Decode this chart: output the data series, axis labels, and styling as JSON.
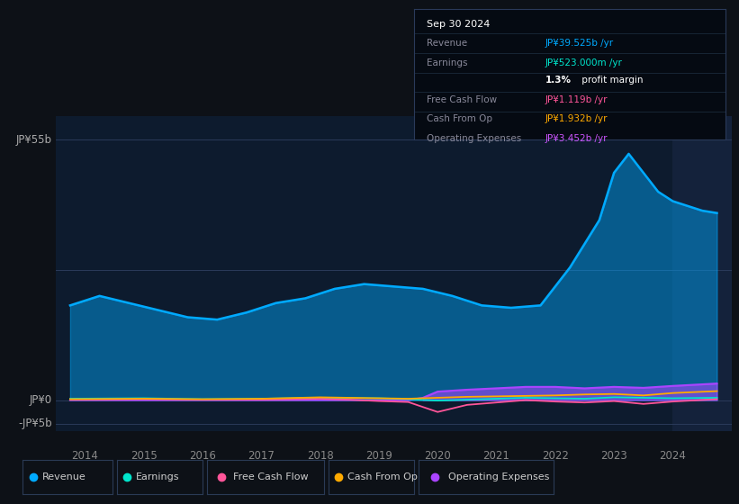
{
  "background_color": "#0d1117",
  "chart_bg_color": "#0d1b2e",
  "ylabel_top": "JP¥55b",
  "ylabel_zero": "JP¥0",
  "ylabel_neg": "-JP¥5b",
  "legend_items": [
    {
      "label": "Revenue",
      "color": "#00aaff"
    },
    {
      "label": "Earnings",
      "color": "#00e5cc"
    },
    {
      "label": "Free Cash Flow",
      "color": "#ff5599"
    },
    {
      "label": "Cash From Op",
      "color": "#ffaa00"
    },
    {
      "label": "Operating Expenses",
      "color": "#aa44ff"
    }
  ],
  "revenue_x": [
    2013.75,
    2014.25,
    2014.75,
    2015.25,
    2015.75,
    2016.25,
    2016.75,
    2017.25,
    2017.75,
    2018.25,
    2018.75,
    2019.25,
    2019.75,
    2020.25,
    2020.75,
    2021.25,
    2021.75,
    2022.25,
    2022.75,
    2023.0,
    2023.25,
    2023.5,
    2023.75,
    2024.0,
    2024.5,
    2024.75
  ],
  "revenue_y": [
    20.0,
    22.0,
    20.5,
    19.0,
    17.5,
    17.0,
    18.5,
    20.5,
    21.5,
    23.5,
    24.5,
    24.0,
    23.5,
    22.0,
    20.0,
    19.5,
    20.0,
    28.0,
    38.0,
    48.0,
    52.0,
    48.0,
    44.0,
    42.0,
    40.0,
    39.5
  ],
  "earnings_x": [
    2013.75,
    2015.0,
    2016.0,
    2017.0,
    2018.0,
    2019.0,
    2019.5,
    2020.0,
    2020.5,
    2021.0,
    2021.5,
    2022.0,
    2022.5,
    2023.0,
    2023.5,
    2024.0,
    2024.75
  ],
  "earnings_y": [
    0.3,
    0.4,
    0.2,
    0.3,
    0.5,
    0.4,
    0.2,
    -0.1,
    0.1,
    0.3,
    0.5,
    0.4,
    0.3,
    0.6,
    0.5,
    0.4,
    0.5
  ],
  "fcf_x": [
    2013.75,
    2015.0,
    2016.0,
    2017.0,
    2018.0,
    2018.5,
    2019.0,
    2019.5,
    2020.0,
    2020.5,
    2021.0,
    2021.5,
    2022.0,
    2022.5,
    2023.0,
    2023.5,
    2024.0,
    2024.75
  ],
  "fcf_y": [
    0.1,
    0.2,
    0.1,
    0.1,
    0.3,
    0.1,
    -0.2,
    -0.4,
    -2.5,
    -1.0,
    -0.5,
    0.0,
    -0.3,
    -0.5,
    -0.2,
    -0.8,
    -0.3,
    0.2
  ],
  "cfo_x": [
    2013.75,
    2015.0,
    2016.0,
    2017.0,
    2018.0,
    2018.5,
    2019.0,
    2019.5,
    2020.0,
    2020.5,
    2021.0,
    2021.5,
    2022.0,
    2022.5,
    2023.0,
    2023.5,
    2024.0,
    2024.75
  ],
  "cfo_y": [
    0.2,
    0.3,
    0.2,
    0.3,
    0.6,
    0.5,
    0.4,
    0.3,
    0.5,
    0.7,
    0.8,
    0.9,
    1.0,
    1.2,
    1.3,
    1.0,
    1.5,
    1.9
  ],
  "opex_x": [
    2013.75,
    2019.5,
    2019.75,
    2020.0,
    2020.5,
    2021.0,
    2021.5,
    2022.0,
    2022.5,
    2023.0,
    2023.5,
    2024.0,
    2024.75
  ],
  "opex_y": [
    0.0,
    0.0,
    0.5,
    1.8,
    2.2,
    2.5,
    2.8,
    2.8,
    2.5,
    2.8,
    2.6,
    3.0,
    3.5
  ],
  "ylim": [
    -6.5,
    60
  ],
  "xlim": [
    2013.5,
    2025.0
  ],
  "hlines": [
    55,
    27.5,
    0,
    -5
  ],
  "future_start": 2024.0
}
